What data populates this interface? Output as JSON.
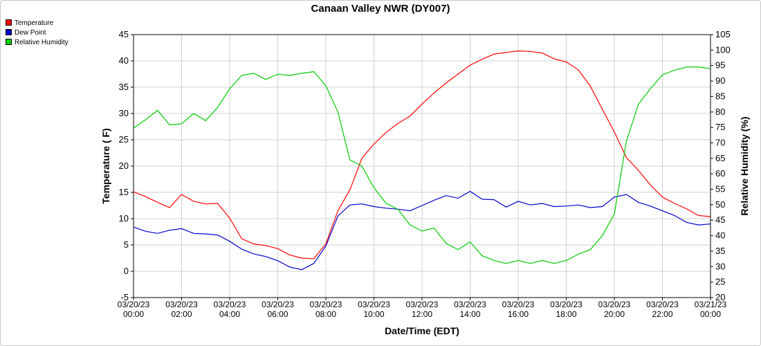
{
  "title": "Canaan Valley NWR (DY007)",
  "chart_data": {
    "type": "line",
    "title": "Canaan Valley NWR (DY007)",
    "xlabel": "Date/Time (EDT)",
    "ylabel_left": "Temperature ( F)",
    "ylabel_right": "Relative Humidity (%)",
    "ylim_left": [
      -5,
      45
    ],
    "ylim_right": [
      20,
      105
    ],
    "yticks_left": [
      -5,
      0,
      5,
      10,
      15,
      20,
      25,
      30,
      35,
      40,
      45
    ],
    "yticks_right": [
      20,
      25,
      30,
      35,
      40,
      45,
      50,
      55,
      60,
      65,
      70,
      75,
      80,
      85,
      90,
      95,
      100,
      105
    ],
    "grid": true,
    "legend_position": "top-left",
    "x_ticks": [
      {
        "date": "03/20/23",
        "time": "00:00"
      },
      {
        "date": "03/20/23",
        "time": "02:00"
      },
      {
        "date": "03/20/23",
        "time": "04:00"
      },
      {
        "date": "03/20/23",
        "time": "06:00"
      },
      {
        "date": "03/20/23",
        "time": "08:00"
      },
      {
        "date": "03/20/23",
        "time": "10:00"
      },
      {
        "date": "03/20/23",
        "time": "12:00"
      },
      {
        "date": "03/20/23",
        "time": "14:00"
      },
      {
        "date": "03/20/23",
        "time": "16:00"
      },
      {
        "date": "03/20/23",
        "time": "18:00"
      },
      {
        "date": "03/20/23",
        "time": "20:00"
      },
      {
        "date": "03/20/23",
        "time": "22:00"
      },
      {
        "date": "03/21/23",
        "time": "00:00"
      }
    ],
    "x_hours": [
      0,
      0.5,
      1,
      1.5,
      2,
      2.5,
      3,
      3.5,
      4,
      4.5,
      5,
      5.5,
      6,
      6.5,
      7,
      7.5,
      8,
      8.5,
      9,
      9.5,
      10,
      10.5,
      11,
      11.5,
      12,
      12.5,
      13,
      13.5,
      14,
      14.5,
      15,
      15.5,
      16,
      16.5,
      17,
      17.5,
      18,
      18.5,
      19,
      19.5,
      20,
      20.5,
      21,
      21.5,
      22,
      22.5,
      23,
      23.5,
      24
    ],
    "series": [
      {
        "name": "Temperature",
        "axis": "left",
        "color": "#ff0000",
        "values": [
          15.1,
          14.2,
          13.1,
          12.1,
          14.6,
          13.3,
          12.8,
          12.9,
          10.1,
          6.2,
          5.2,
          4.9,
          4.3,
          3.1,
          2.5,
          2.4,
          5.2,
          11.5,
          15.5,
          21.5,
          24.2,
          26.4,
          28.1,
          29.5,
          31.8,
          33.9,
          35.8,
          37.5,
          39.2,
          40.3,
          41.3,
          41.6,
          41.9,
          41.8,
          41.5,
          40.4,
          39.8,
          38.3,
          35.2,
          30.8,
          26.5,
          21.6,
          19.2,
          16.4,
          14.1,
          12.9,
          11.9,
          10.6,
          10.4
        ]
      },
      {
        "name": "Dew Point",
        "axis": "left",
        "color": "#0000cc",
        "values": [
          8.4,
          7.6,
          7.2,
          7.8,
          8.1,
          7.2,
          7.1,
          6.9,
          5.7,
          4.2,
          3.3,
          2.8,
          2.0,
          0.8,
          0.3,
          1.5,
          4.8,
          10.5,
          12.6,
          12.8,
          12.3,
          12.0,
          11.8,
          11.5,
          12.5,
          13.5,
          14.4,
          13.9,
          15.2,
          13.7,
          13.6,
          12.2,
          13.3,
          12.6,
          12.9,
          12.3,
          12.4,
          12.6,
          12.1,
          12.3,
          14.1,
          14.6,
          13.1,
          12.4,
          11.5,
          10.6,
          9.3,
          8.8,
          9.0
        ]
      },
      {
        "name": "Relative Humidity",
        "axis": "right",
        "color": "#00cc00",
        "values": [
          74.8,
          77.5,
          80.5,
          75.8,
          76.2,
          79.5,
          77.2,
          81.5,
          87.5,
          91.8,
          92.5,
          90.5,
          92.2,
          91.8,
          92.5,
          93.0,
          88.5,
          80.0,
          64.5,
          62.5,
          55.5,
          50.5,
          48.5,
          43.5,
          41.5,
          42.5,
          37.5,
          35.5,
          38.0,
          33.5,
          32.0,
          31.0,
          32.0,
          31.0,
          32.0,
          31.0,
          32.0,
          34.0,
          35.5,
          40.0,
          47.0,
          70.5,
          82.5,
          87.5,
          92.0,
          93.5,
          94.5,
          94.5,
          94.0
        ]
      }
    ]
  }
}
